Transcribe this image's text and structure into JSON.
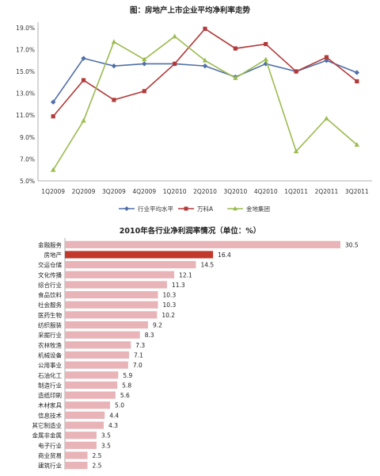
{
  "chart_data": [
    {
      "type": "line",
      "title": "图：房地产上市企业平均净利率走势",
      "categories": [
        "1Q2009",
        "2Q2009",
        "3Q2009",
        "4Q2009",
        "1Q2010",
        "2Q2010",
        "3Q2010",
        "4Q2010",
        "1Q2011",
        "2Q2011",
        "3Q2011"
      ],
      "y_ticks": [
        "19.0%",
        "17.0%",
        "15.0%",
        "13.0%",
        "11.0%",
        "9.0%",
        "7.0%",
        "5.0%"
      ],
      "ylim": [
        5,
        19.5
      ],
      "grid": false,
      "legend_position": "bottom",
      "series": [
        {
          "name": "行业平均水平",
          "color": "#4f6fa8",
          "marker": "diamond",
          "values": [
            12.2,
            16.2,
            15.5,
            15.7,
            15.7,
            15.5,
            14.5,
            15.7,
            15.0,
            16.0,
            14.9
          ]
        },
        {
          "name": "万科A",
          "color": "#b23a3a",
          "marker": "square",
          "values": [
            10.9,
            14.2,
            12.4,
            13.2,
            15.7,
            18.9,
            17.1,
            17.5,
            15.0,
            16.3,
            14.1
          ]
        },
        {
          "name": "金地集团",
          "color": "#9bbb4f",
          "marker": "triangle",
          "values": [
            6.0,
            10.5,
            17.7,
            16.1,
            18.2,
            16.0,
            14.4,
            16.1,
            7.7,
            10.7,
            8.3
          ]
        }
      ]
    },
    {
      "type": "bar",
      "orientation": "horizontal",
      "title": "2010年各行业净利润率情况（单位：%）",
      "categories": [
        "金融服务",
        "房地产",
        "交运仓储",
        "文化传播",
        "综合行业",
        "食品饮料",
        "社会服务",
        "医药生物",
        "纺织服装",
        "采掘行业",
        "农林牧渔",
        "机械设备",
        "公用事业",
        "石油化工",
        "制造行业",
        "造纸印刷",
        "木材家具",
        "信息技术",
        "其它制造业",
        "金属非金属",
        "电子行业",
        "商业贸易",
        "建筑行业"
      ],
      "values": [
        30.5,
        16.4,
        14.5,
        12.1,
        11.3,
        10.3,
        10.3,
        10.2,
        9.2,
        8.3,
        7.3,
        7.1,
        7.0,
        5.9,
        5.8,
        5.6,
        5.0,
        4.4,
        4.3,
        3.5,
        3.5,
        2.5,
        2.5
      ],
      "value_labels": [
        "30.5",
        "16.4",
        "14.5",
        "12.1",
        "11.3",
        "10.3",
        "10.3",
        "10.2",
        "9.2",
        "8.3",
        "7.3",
        "7.1",
        "7.0",
        "5.9",
        "5.8",
        "5.6",
        "5.0",
        "4.4",
        "4.3",
        "3.5",
        "3.5",
        "2.5",
        "2.5"
      ],
      "highlight_index": 1,
      "colors": {
        "default": "#e8b4b8",
        "highlight": "#c0392b"
      }
    }
  ]
}
